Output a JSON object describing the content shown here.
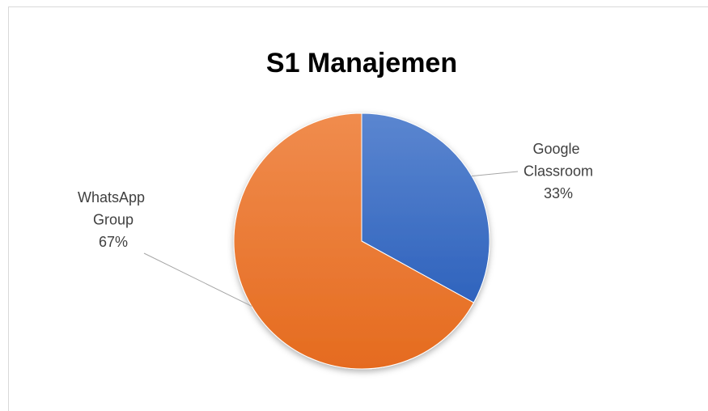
{
  "chart_data": {
    "type": "pie",
    "title": "S1 Manajemen",
    "categories": [
      "Google Classroom",
      "WhatsApp Group"
    ],
    "values": [
      33,
      67
    ],
    "value_labels": [
      "33%",
      "67%"
    ],
    "colors": [
      "#4472c4",
      "#ed7d31"
    ]
  }
}
